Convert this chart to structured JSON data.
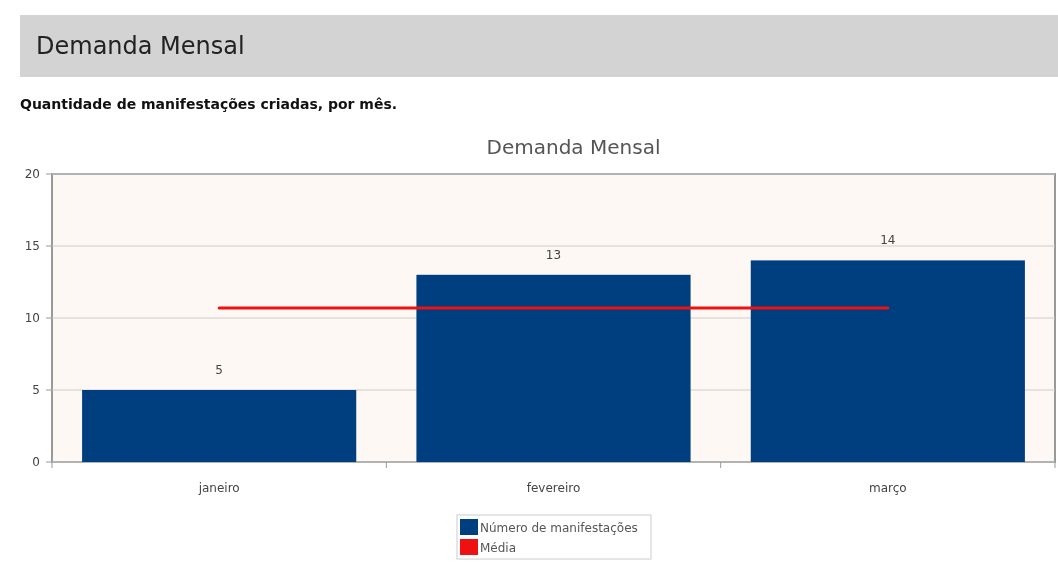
{
  "chart_data": {
    "type": "bar",
    "title": "Demanda Mensal",
    "subtitle": "Quantidade de manifestações criadas, por mês.",
    "annotations": [
      "Demanda Mensal"
    ],
    "categories": [
      "janeiro",
      "fevereiro",
      "março"
    ],
    "series": [
      {
        "name": "Número de manifestações",
        "color": "#003f7f",
        "values": [
          5,
          13,
          14
        ],
        "value_labels": [
          "5",
          "13",
          "14"
        ]
      },
      {
        "name": "Média",
        "type": "line",
        "color": "#ee1111",
        "values": [
          10.7,
          10.7,
          10.7
        ]
      }
    ],
    "ylim": [
      0,
      20
    ],
    "yticks": [
      0,
      5,
      10,
      15,
      20
    ],
    "grid": "y",
    "legend": "bottom"
  }
}
